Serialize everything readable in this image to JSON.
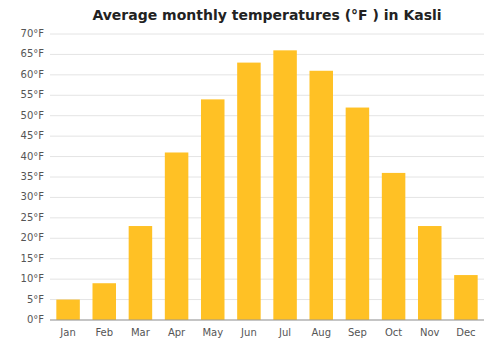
{
  "chart_data": {
    "type": "bar",
    "title": "Average monthly temperatures (°F ) in Kasli",
    "categories": [
      "Jan",
      "Feb",
      "Mar",
      "Apr",
      "May",
      "Jun",
      "Jul",
      "Aug",
      "Sep",
      "Oct",
      "Nov",
      "Dec"
    ],
    "values": [
      5,
      9,
      23,
      41,
      54,
      63,
      66,
      61,
      52,
      36,
      23,
      11
    ],
    "color": "#FFC125",
    "ylim": [
      0,
      70
    ],
    "yticks": [
      {
        "value": 0,
        "label": "0°F"
      },
      {
        "value": 5,
        "label": "5°F"
      },
      {
        "value": 10,
        "label": "10°F"
      },
      {
        "value": 15,
        "label": "15°F"
      },
      {
        "value": 20,
        "label": "20°F"
      },
      {
        "value": 25,
        "label": "25°F"
      },
      {
        "value": 30,
        "label": "30°F"
      },
      {
        "value": 35,
        "label": "35°F"
      },
      {
        "value": 40,
        "label": "40°F"
      },
      {
        "value": 45,
        "label": "45°F"
      },
      {
        "value": 50,
        "label": "50°F"
      },
      {
        "value": 55,
        "label": "55°F"
      },
      {
        "value": 60,
        "label": "60°F"
      },
      {
        "value": 65,
        "label": "65°F"
      },
      {
        "value": 70,
        "label": "70°F"
      }
    ],
    "grid": true
  }
}
